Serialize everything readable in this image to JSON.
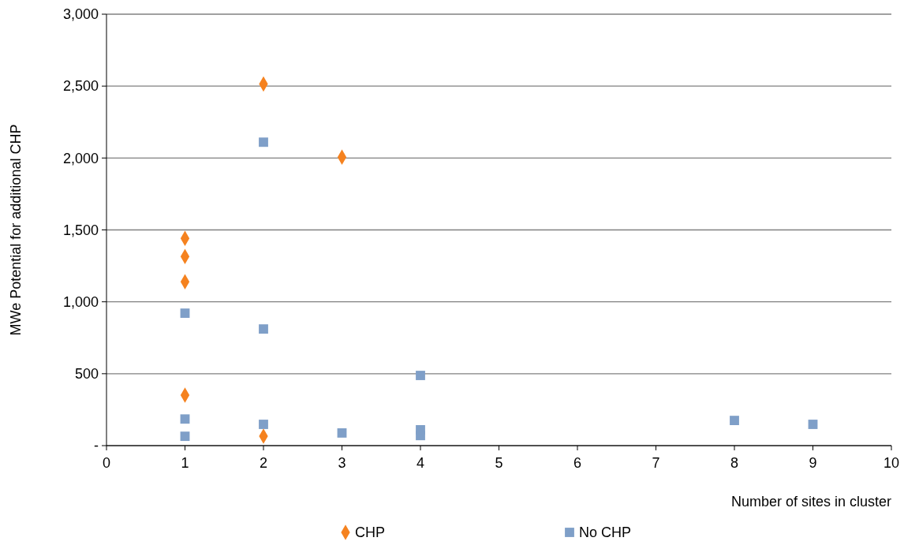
{
  "chart_data": {
    "type": "scatter",
    "xlabel": "Number of sites in cluster",
    "ylabel": "MWe Potential for additional CHP",
    "xlim": [
      0,
      10
    ],
    "xticks": [
      0,
      1,
      2,
      3,
      4,
      5,
      6,
      7,
      8,
      9,
      10
    ],
    "ylim": [
      0,
      3000
    ],
    "yticks": [
      {
        "value": 0,
        "label": "-"
      },
      {
        "value": 500,
        "label": "500"
      },
      {
        "value": 1000,
        "label": "1,000"
      },
      {
        "value": 1500,
        "label": "1,500"
      },
      {
        "value": 2000,
        "label": "2,000"
      },
      {
        "value": 2500,
        "label": "2,500"
      },
      {
        "value": 3000,
        "label": "3,000"
      }
    ],
    "grid": "y",
    "legend": "bottom",
    "series": [
      {
        "name": "CHP",
        "color": "#f5821f",
        "marker": "diamond",
        "x": [
          1,
          1,
          1,
          1,
          2,
          2,
          3
        ],
        "values": [
          1441,
          1315,
          1140,
          351,
          2515,
          66,
          2006
        ]
      },
      {
        "name": "No CHP",
        "color": "#7f9fc8",
        "marker": "square",
        "x": [
          1,
          1,
          1,
          2,
          2,
          2,
          3,
          4,
          4,
          4,
          8,
          9
        ],
        "values": [
          921,
          185,
          65,
          2110,
          811,
          148,
          88,
          488,
          110,
          70,
          175,
          148
        ]
      }
    ]
  }
}
